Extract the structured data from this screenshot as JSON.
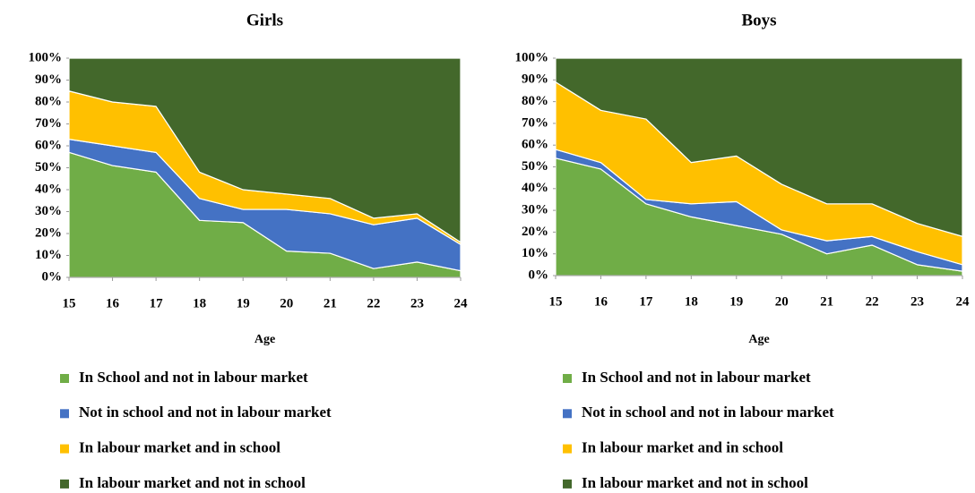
{
  "chart_data": [
    {
      "type": "area",
      "stacked": true,
      "title": "Girls",
      "xlabel": "Age",
      "x": [
        15,
        16,
        17,
        18,
        19,
        20,
        21,
        22,
        23,
        24
      ],
      "xlim": [
        15,
        24
      ],
      "xticks": [
        15,
        16,
        17,
        18,
        19,
        20,
        21,
        22,
        23,
        24
      ],
      "ylim": [
        0,
        100
      ],
      "yticks": [
        {
          "value": 0,
          "label": "0%"
        },
        {
          "value": 10,
          "label": "10%"
        },
        {
          "value": 20,
          "label": "20%"
        },
        {
          "value": 30,
          "label": "30%"
        },
        {
          "value": 40,
          "label": "40%"
        },
        {
          "value": 50,
          "label": "50%"
        },
        {
          "value": 60,
          "label": "60%"
        },
        {
          "value": 70,
          "label": "70%"
        },
        {
          "value": 80,
          "label": "80%"
        },
        {
          "value": 90,
          "label": "90%"
        },
        {
          "value": 100,
          "label": "100%"
        }
      ],
      "series": [
        {
          "name": "In School and not in labour market",
          "color": "#70ad47",
          "values": [
            57,
            51,
            48,
            26,
            25,
            12,
            11,
            4,
            7,
            3
          ]
        },
        {
          "name": "Not in school and not in labour market",
          "color": "#4472c4",
          "values": [
            6,
            9,
            9,
            10,
            6,
            19,
            18,
            20,
            20,
            12
          ]
        },
        {
          "name": "In labour market and in school",
          "color": "#ffc000",
          "values": [
            22,
            20,
            21,
            12,
            9,
            7,
            7,
            3,
            2,
            1
          ]
        },
        {
          "name": "In labour market and not in school",
          "color": "#43682b",
          "values": [
            15,
            20,
            22,
            52,
            60,
            62,
            64,
            73,
            71,
            84
          ]
        }
      ]
    },
    {
      "type": "area",
      "stacked": true,
      "title": "Boys",
      "xlabel": "Age",
      "x": [
        15,
        16,
        17,
        18,
        19,
        20,
        21,
        22,
        23,
        24
      ],
      "xlim": [
        15,
        24
      ],
      "xticks": [
        15,
        16,
        17,
        18,
        19,
        20,
        21,
        22,
        23,
        24
      ],
      "ylim": [
        0,
        100
      ],
      "yticks": [
        {
          "value": 0,
          "label": "0%"
        },
        {
          "value": 10,
          "label": "10%"
        },
        {
          "value": 20,
          "label": "20%"
        },
        {
          "value": 30,
          "label": "30%"
        },
        {
          "value": 40,
          "label": "40%"
        },
        {
          "value": 50,
          "label": "50%"
        },
        {
          "value": 60,
          "label": "60%"
        },
        {
          "value": 70,
          "label": "70%"
        },
        {
          "value": 80,
          "label": "80%"
        },
        {
          "value": 90,
          "label": "90%"
        },
        {
          "value": 100,
          "label": "100%"
        }
      ],
      "series": [
        {
          "name": "In School and not in labour market",
          "color": "#70ad47",
          "values": [
            54,
            49,
            33,
            27,
            23,
            19,
            10,
            14,
            5,
            2
          ]
        },
        {
          "name": "Not in school and not in labour market",
          "color": "#4472c4",
          "values": [
            4,
            3,
            2,
            6,
            11,
            2,
            6,
            4,
            6,
            3
          ]
        },
        {
          "name": "In labour market and in school",
          "color": "#ffc000",
          "values": [
            31,
            24,
            37,
            19,
            21,
            21,
            17,
            15,
            13,
            13
          ]
        },
        {
          "name": "In labour market and not in school",
          "color": "#43682b",
          "values": [
            11,
            24,
            28,
            48,
            45,
            58,
            67,
            67,
            76,
            82
          ]
        }
      ]
    }
  ]
}
